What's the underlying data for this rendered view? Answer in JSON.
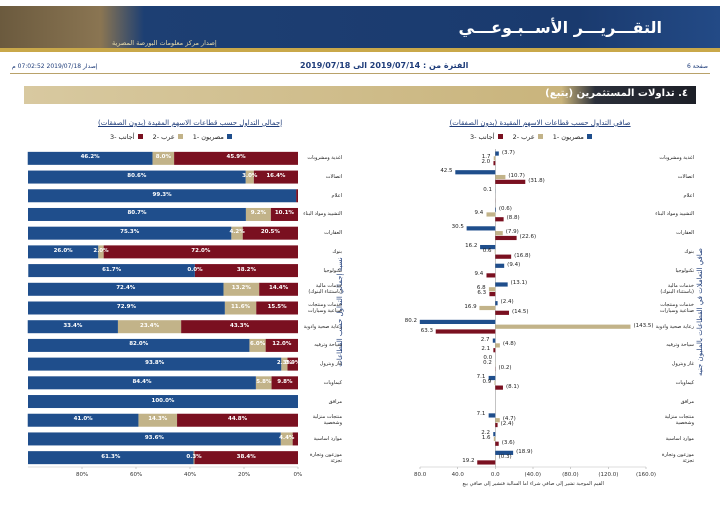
{
  "header": {
    "title": "التقـــريـــر الأســبـوعـــي",
    "subtitle": "إصدار مركز معلومات البورصة المصرية",
    "page": "صفحة 6",
    "period": "الفترة من : 2019/07/14 الى 2019/07/18",
    "issued": "إصدار 2019/07/18 07:02:52 م"
  },
  "section": "٤. تداولات المستثمرين (يتبع)",
  "chart_data": [
    {
      "type": "bar",
      "orientation": "horizontal",
      "stacked": true,
      "title": "إجمالي التداول حسب قطاعات الاسهم المقيدة (بدون الصفقات)",
      "y_label": "نسبة إجمالي التداول حسب القطاعات",
      "categories": [
        "اغذية ومشروبات",
        "اتصالات",
        "اعلام",
        "التشييد ومواد البناء",
        "العقارات",
        "بنوك",
        "تكنولوجيا",
        "خدمات مالية (باستثناء البنوك)",
        "خدمات ومنتجات صناعية وسيارات",
        "رعاية صحية وادوية",
        "سياحة وترفيه",
        "غاز وبترول",
        "كيماويات",
        "مرافق",
        "منتجات منزلية وشخصية",
        "موارد اساسية",
        "موزعون وتجارة تجزئة"
      ],
      "series": [
        {
          "name": "مصريون -1",
          "color": "#1f4e8c",
          "values": [
            46.2,
            80.6,
            99.3,
            80.7,
            75.3,
            26.0,
            61.7,
            72.4,
            72.9,
            33.4,
            82.0,
            93.8,
            84.4,
            100.0,
            41.0,
            93.6,
            61.3
          ],
          "value_labels": [
            "46.2%",
            "80.6%",
            "99.3%",
            "80.7%",
            "75.3%",
            "26.0%",
            "61.7%",
            "72.4%",
            "72.9%",
            "33.4%",
            "82.0%",
            "93.8%",
            "84.4%",
            "100.0%",
            "41.0%",
            "93.6%",
            "61.3%"
          ]
        },
        {
          "name": "عرب -2",
          "color": "#c2b389",
          "values": [
            8.0,
            3.0,
            0.0,
            9.2,
            4.2,
            2.0,
            0.0,
            13.2,
            11.6,
            23.4,
            6.0,
            2.3,
            5.8,
            0.0,
            14.3,
            4.4,
            0.3
          ],
          "value_labels": [
            "8.0%",
            "3.0%",
            null,
            "9.2%",
            "4.2%",
            "2.0%",
            "0.0%",
            "13.2%",
            "11.6%",
            "23.4%",
            "6.0%",
            "2.3%",
            "5.8%",
            null,
            "14.3%",
            "4.4%",
            "0.3%"
          ]
        },
        {
          "name": "أجانب -3",
          "color": "#7a1020",
          "values": [
            45.9,
            16.4,
            0.7,
            10.1,
            20.5,
            72.0,
            38.2,
            14.4,
            15.5,
            43.3,
            12.0,
            3.9,
            9.8,
            0.0,
            44.8,
            2.0,
            38.4
          ],
          "value_labels": [
            "45.9%",
            "16.4%",
            null,
            "10.1%",
            "20.5%",
            "72.0%",
            "38.2%",
            "14.4%",
            "15.5%",
            "43.3%",
            "12.0%",
            "3.9%",
            "9.8%",
            null,
            "44.8%",
            null,
            "38.4%"
          ]
        }
      ],
      "xlim": [
        100,
        0
      ],
      "xticks": [
        {
          "value": 80,
          "label": "80%"
        },
        {
          "value": 60,
          "label": "60%"
        },
        {
          "value": 40,
          "label": "40%"
        },
        {
          "value": 20,
          "label": "20%"
        },
        {
          "value": 0,
          "label": "0%"
        }
      ]
    },
    {
      "type": "bar",
      "orientation": "horizontal",
      "stacked": false,
      "title": "صافي التداول حسب قطاعات الاسهم المقيدة (بدون الصفقات)",
      "y_label": "صافي التعاملات في القطاعات بالمليون جنيه",
      "note": "القيم الموجبة تشير إلى صافي شراء اما السالبة فتشير إلى صافي بيع",
      "categories": [
        "اغذية ومشروبات",
        "اتصالات",
        "اعلام",
        "التشييد ومواد البناء",
        "العقارات",
        "بنوك",
        "تكنولوجيا",
        "خدمات مالية (باستثناء البنوك)",
        "خدمات ومنتجات صناعية وسيارات",
        "رعاية صحية وادوية",
        "سياحة وترفيه",
        "غاز وبترول",
        "كيماويات",
        "مرافق",
        "منتجات منزلية وشخصية",
        "موارد اساسية",
        "موزعون وتجارة تجزئة"
      ],
      "series": [
        {
          "name": "مصريون -1",
          "color": "#1f4e8c",
          "values": [
            -3.7,
            42.5,
            0.1,
            -0.6,
            30.5,
            16.2,
            -9.4,
            -13.1,
            -2.4,
            80.2,
            2.7,
            0.0,
            7.1,
            0.0,
            7.1,
            2.2,
            -18.9
          ],
          "value_labels": [
            "(3.7)",
            "42.5",
            "0.1",
            "(0.6)",
            "30.5",
            "16.2",
            "(9.4)",
            "(13.1)",
            "(2.4)",
            "80.2",
            "2.7",
            "0.0",
            "7.1",
            null,
            "7.1",
            "2.2",
            "(18.9)"
          ]
        },
        {
          "name": "عرب -2",
          "color": "#c2b389",
          "values": [
            1.7,
            -10.7,
            0.0,
            9.4,
            -7.9,
            0.6,
            0.0,
            6.8,
            16.9,
            -143.5,
            -4.8,
            0.2,
            0.9,
            0.0,
            -4.7,
            1.6,
            -0.3
          ],
          "value_labels": [
            "1.7",
            "(10.7)",
            null,
            "9.4",
            "(7.9)",
            "0.6",
            null,
            "6.8",
            "16.9",
            "(143.5)",
            "(4.8)",
            "0.2",
            "0.9",
            null,
            "(4.7)",
            "1.6",
            "(0.3)"
          ]
        },
        {
          "name": "أجانب -3",
          "color": "#7a1020",
          "values": [
            2.0,
            -31.8,
            -0.1,
            -8.8,
            -22.6,
            -16.8,
            9.4,
            6.3,
            -14.5,
            63.3,
            2.1,
            -0.2,
            -8.1,
            0.0,
            -2.4,
            -3.6,
            19.2
          ],
          "value_labels": [
            "2.0",
            "(31.8)",
            null,
            "(8.8)",
            "(22.6)",
            "(16.8)",
            "9.4",
            "6.3",
            "(14.5)",
            "63.3",
            "2.1",
            "(0.2)",
            "(8.1)",
            null,
            "(2.4)",
            "(3.6)",
            "19.2"
          ]
        }
      ],
      "xlim": [
        80,
        -160
      ],
      "xticks": [
        {
          "value": 80,
          "label": "80.0"
        },
        {
          "value": 40,
          "label": "40.0"
        },
        {
          "value": 0,
          "label": "0.0"
        },
        {
          "value": -40,
          "label": "(40.0)"
        },
        {
          "value": -80,
          "label": "(80.0)"
        },
        {
          "value": -120,
          "label": "(120.0)"
        },
        {
          "value": -160,
          "label": "(160.0)"
        }
      ]
    }
  ]
}
